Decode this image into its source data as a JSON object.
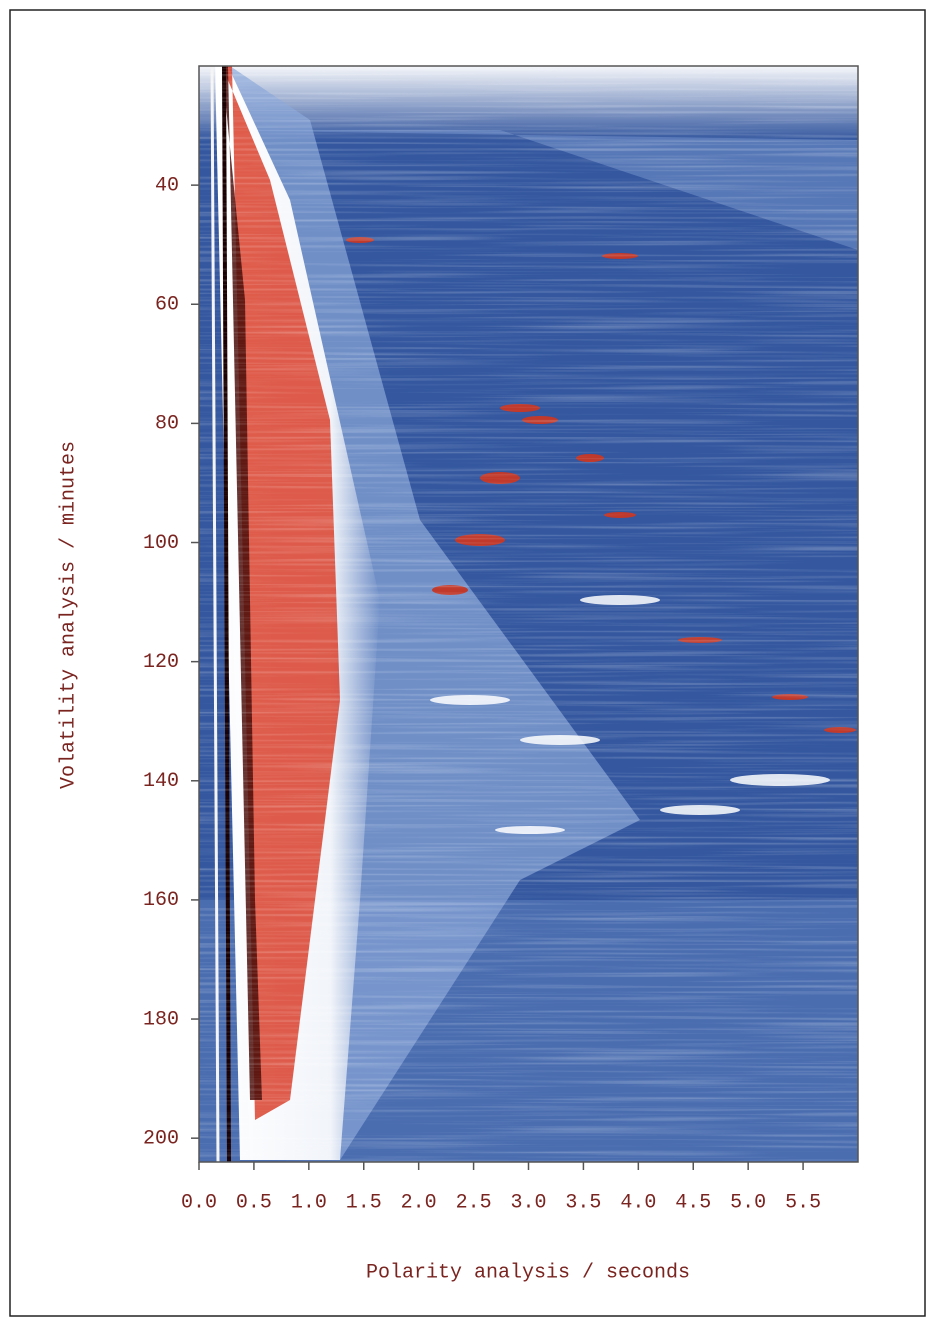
{
  "chart_data": {
    "type": "heatmap",
    "x_label": "Polarity analysis / seconds",
    "y_label": "Volatility analysis / minutes",
    "xlim": [
      0,
      6
    ],
    "ylim": [
      20,
      204
    ],
    "y_inverted": true,
    "xticks": [
      {
        "value": 0,
        "label": "0.0"
      },
      0.5,
      {
        "value": 1,
        "label": "1.0"
      },
      1.5,
      {
        "value": 2,
        "label": "2.0"
      },
      2.5,
      {
        "value": 3,
        "label": "3.0"
      },
      3.5,
      {
        "value": 4,
        "label": "4.0"
      },
      4.5,
      {
        "value": 5,
        "label": "5.0"
      },
      5.5
    ],
    "yticks": [
      40,
      60,
      80,
      100,
      120,
      140,
      160,
      180,
      200
    ]
  }
}
